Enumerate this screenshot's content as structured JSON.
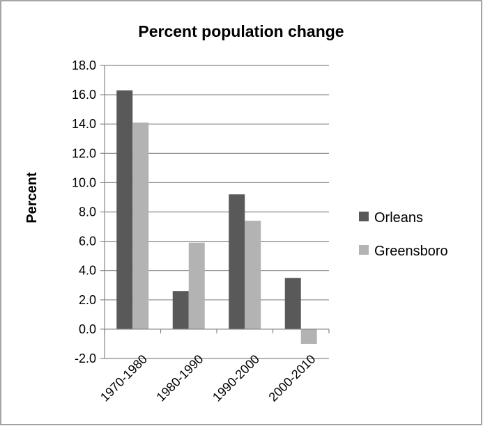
{
  "chart_data": {
    "type": "bar",
    "title": "Percent population change",
    "xlabel": "",
    "ylabel": "Percent",
    "categories": [
      "1970-1980",
      "1980-1990",
      "1990-2000",
      "2000-2010"
    ],
    "series": [
      {
        "name": "Orleans",
        "values": [
          16.3,
          2.6,
          9.2,
          3.5
        ],
        "color": "#595959"
      },
      {
        "name": "Greensboro",
        "values": [
          14.1,
          5.9,
          7.4,
          -1.0
        ],
        "color": "#b3b3b3"
      }
    ],
    "ylim": [
      -2.0,
      18.0
    ],
    "y_ticks": [
      "-2.0",
      "0.0",
      "2.0",
      "4.0",
      "6.0",
      "8.0",
      "10.0",
      "12.0",
      "14.0",
      "16.0",
      "18.0"
    ],
    "grid": true,
    "legend_position": "right",
    "colors": {
      "gridline": "#868686",
      "border": "#868686"
    }
  }
}
